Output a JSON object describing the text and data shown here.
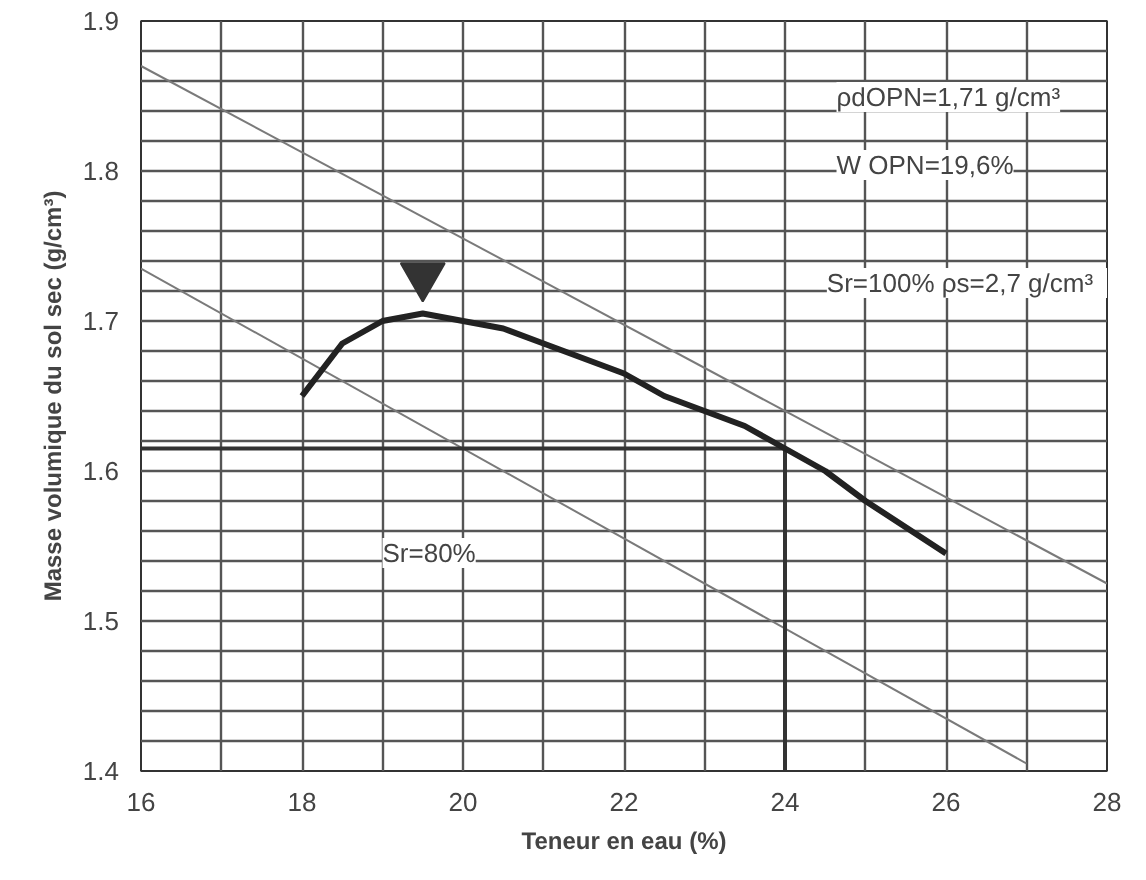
{
  "chart_data": {
    "type": "line",
    "xlabel": "Teneur en eau (%)",
    "ylabel": "Masse volumique du sol sec (g/cm³)",
    "xlim": [
      16,
      28
    ],
    "ylim": [
      1.4,
      1.9
    ],
    "xticks": [
      16,
      {
        "value": 17,
        "label": null
      },
      18,
      {
        "value": 19,
        "label": null
      },
      20,
      {
        "value": 21,
        "label": null
      },
      22,
      {
        "value": 23,
        "label": null
      },
      24,
      {
        "value": 25,
        "label": null
      },
      26,
      {
        "value": 27,
        "label": null
      },
      28
    ],
    "yticks": [
      1.4,
      {
        "value": 1.42,
        "label": null
      },
      {
        "value": 1.44,
        "label": null
      },
      {
        "value": 1.46,
        "label": null
      },
      {
        "value": 1.48,
        "label": null
      },
      1.5,
      {
        "value": 1.52,
        "label": null
      },
      {
        "value": 1.54,
        "label": null
      },
      {
        "value": 1.56,
        "label": null
      },
      {
        "value": 1.58,
        "label": null
      },
      1.6,
      {
        "value": 1.62,
        "label": null
      },
      {
        "value": 1.64,
        "label": null
      },
      {
        "value": 1.66,
        "label": null
      },
      {
        "value": 1.68,
        "label": null
      },
      1.7,
      {
        "value": 1.72,
        "label": null
      },
      {
        "value": 1.74,
        "label": null
      },
      {
        "value": 1.76,
        "label": null
      },
      {
        "value": 1.78,
        "label": null
      },
      1.8,
      {
        "value": 1.82,
        "label": null
      },
      {
        "value": 1.84,
        "label": null
      },
      {
        "value": 1.86,
        "label": null
      },
      {
        "value": 1.88,
        "label": null
      },
      1.9
    ],
    "grid": true,
    "marker": "none",
    "line_style": "solid",
    "series": [
      {
        "color": "#7a7a7a",
        "x": [
          16,
          28
        ],
        "values": [
          1.87,
          1.525
        ]
      },
      {
        "color": "#7a7a7a",
        "x": [
          16,
          27
        ],
        "values": [
          1.735,
          1.405
        ]
      },
      {
        "color": "#333333",
        "x": [
          16,
          24,
          24
        ],
        "values": [
          1.615,
          1.615,
          1.4
        ]
      },
      {
        "color": "#222222",
        "x": [
          18,
          18.5,
          19,
          19.5,
          20,
          20.5,
          21,
          22,
          22.5,
          23,
          23.5,
          24,
          24.5,
          25,
          26
        ],
        "values": [
          1.65,
          1.685,
          1.7,
          1.705,
          1.7,
          1.695,
          1.685,
          1.665,
          1.65,
          1.64,
          1.63,
          1.615,
          1.6,
          1.58,
          1.545
        ]
      },
      {
        "type": "scatter",
        "marker": "triangle",
        "color": "#333333",
        "x": [
          19.5
        ],
        "values": [
          1.73
        ]
      }
    ],
    "annotations": [
      "ρdOPN=1,71 g/cm³",
      "W OPN=19,6%",
      "Sr=100%   ρs=2,7 g/cm³",
      "Sr=80%"
    ]
  }
}
